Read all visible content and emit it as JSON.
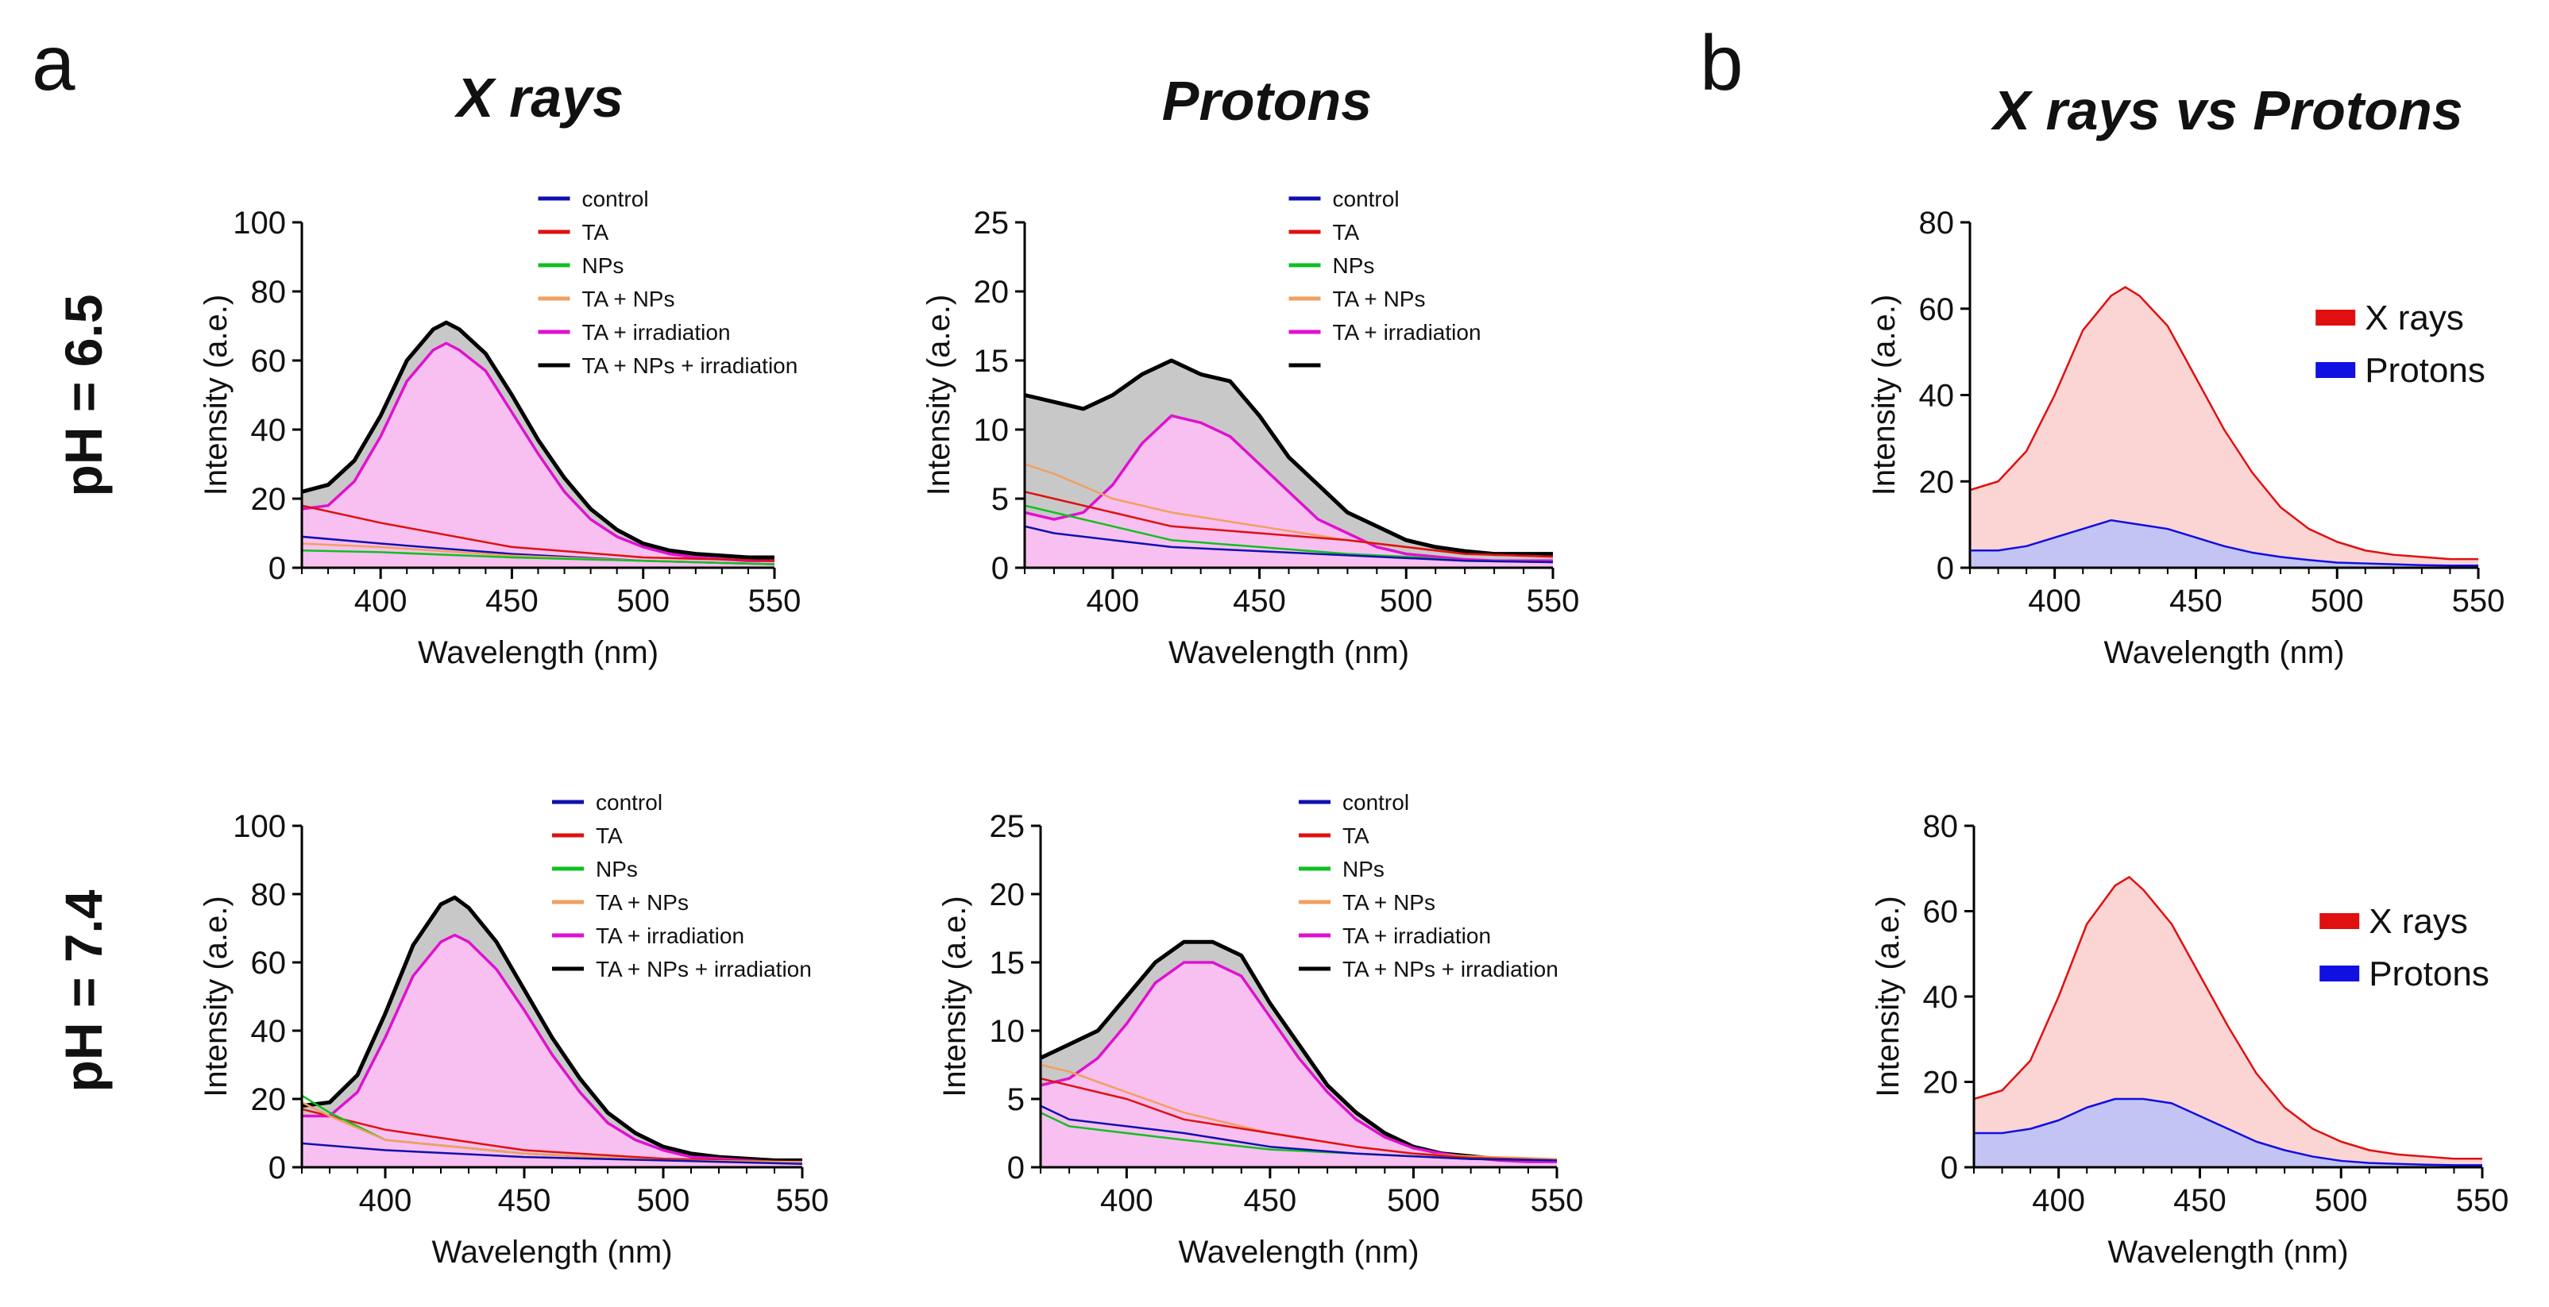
{
  "figure": {
    "panel_a": "a",
    "panel_b": "b",
    "titles": {
      "xrays": "X rays",
      "protons": "Protons",
      "vs": "X rays vs Protons"
    },
    "rows": [
      "pH = 6.5",
      "pH = 7.4"
    ]
  },
  "colors": {
    "control": "#1010b0",
    "TA": "#e01010",
    "NPs": "#10c020",
    "TA + NPs": "#f0a060",
    "TA + irradiation": "#e010d0",
    "TA + NPs + irradiation": "#000000",
    "fill_gray": "#c8c8c8",
    "fill_pink": "#f8c0f0",
    "X rays": "#e01010",
    "Protons": "#1010e0",
    "fill_red": "#fbd4d4",
    "fill_blue": "#c4c4f4"
  },
  "chart_data": [
    {
      "id": "xrays_ph65",
      "type": "line",
      "title": "X rays",
      "row": "pH = 6.5",
      "xlabel": "Wavelength (nm)",
      "ylabel": "Intensity  (a.e.)",
      "xlim": [
        370,
        550
      ],
      "ylim": [
        0,
        100
      ],
      "xticks": [
        "400",
        "450",
        "500",
        "550"
      ],
      "yticks": [
        "0",
        "20",
        "40",
        "60",
        "80",
        "100"
      ],
      "legend": [
        "control",
        "TA",
        "NPs",
        "TA + NPs",
        "TA + irradiation",
        "TA + NPs + irradiation"
      ],
      "series": [
        {
          "name": "TA + NPs + irradiation",
          "x": [
            370,
            380,
            390,
            400,
            410,
            420,
            425,
            430,
            440,
            450,
            460,
            470,
            480,
            490,
            500,
            510,
            520,
            530,
            540,
            550
          ],
          "y": [
            22,
            24,
            31,
            44,
            60,
            69,
            71,
            69,
            62,
            50,
            37,
            26,
            17,
            11,
            7,
            5,
            4,
            3.5,
            3,
            3
          ]
        },
        {
          "name": "TA + irradiation",
          "x": [
            370,
            380,
            390,
            400,
            410,
            420,
            425,
            430,
            440,
            450,
            460,
            470,
            480,
            490,
            500,
            510,
            520,
            530,
            540,
            550
          ],
          "y": [
            17,
            18,
            25,
            38,
            54,
            63,
            65,
            63,
            57,
            45,
            33,
            22,
            14,
            9,
            6,
            4,
            3,
            2.5,
            2,
            2
          ]
        },
        {
          "name": "TA",
          "x": [
            370,
            400,
            450,
            500,
            550
          ],
          "y": [
            18,
            13,
            6,
            3,
            2
          ]
        },
        {
          "name": "control",
          "x": [
            370,
            400,
            450,
            500,
            550
          ],
          "y": [
            9,
            7,
            4,
            2,
            1
          ]
        },
        {
          "name": "TA + NPs",
          "x": [
            370,
            400,
            450,
            500,
            550
          ],
          "y": [
            7,
            6,
            3.5,
            2,
            1
          ]
        },
        {
          "name": "NPs",
          "x": [
            370,
            400,
            450,
            500,
            550
          ],
          "y": [
            5,
            4.5,
            3,
            2,
            1
          ]
        }
      ]
    },
    {
      "id": "protons_ph65",
      "type": "line",
      "title": "Protons",
      "row": "pH = 6.5",
      "xlabel": "Wavelength (nm)",
      "ylabel": "Intensity  (a.e.)",
      "xlim": [
        370,
        550
      ],
      "ylim": [
        0,
        25
      ],
      "xticks": [
        "400",
        "450",
        "500",
        "550"
      ],
      "yticks": [
        "0",
        "5",
        "10",
        "15",
        "20",
        "25"
      ],
      "legend": [
        "control",
        "TA",
        "NPs",
        "TA + NPs",
        "TA + irradiation",
        ""
      ],
      "series": [
        {
          "name": "TA + NPs + irradiation",
          "x": [
            370,
            380,
            390,
            400,
            410,
            420,
            430,
            440,
            450,
            460,
            470,
            480,
            490,
            500,
            510,
            520,
            530,
            540,
            550
          ],
          "y": [
            12.5,
            12,
            11.5,
            12.5,
            14,
            15,
            14,
            13.5,
            11,
            8,
            6,
            4,
            3,
            2,
            1.5,
            1.2,
            1,
            1,
            1
          ]
        },
        {
          "name": "TA + irradiation",
          "x": [
            370,
            380,
            390,
            400,
            410,
            420,
            430,
            440,
            450,
            460,
            470,
            480,
            490,
            500,
            510,
            520,
            530,
            540,
            550
          ],
          "y": [
            4,
            3.5,
            4,
            6,
            9,
            11,
            10.5,
            9.5,
            7.5,
            5.5,
            3.5,
            2.5,
            1.5,
            1,
            0.8,
            0.6,
            0.5,
            0.5,
            0.5
          ]
        },
        {
          "name": "TA + NPs",
          "x": [
            370,
            380,
            400,
            420,
            450,
            480,
            500,
            520,
            550
          ],
          "y": [
            7.5,
            6.8,
            5,
            4,
            3,
            2,
            1.5,
            1,
            0.8
          ]
        },
        {
          "name": "TA",
          "x": [
            370,
            380,
            400,
            420,
            450,
            480,
            500,
            520,
            550
          ],
          "y": [
            5.5,
            5,
            4,
            3,
            2.5,
            2,
            1.5,
            1,
            0.8
          ]
        },
        {
          "name": "NPs",
          "x": [
            370,
            380,
            400,
            420,
            450,
            480,
            500,
            520,
            550
          ],
          "y": [
            4.5,
            4,
            3,
            2,
            1.5,
            1,
            0.8,
            0.5,
            0.4
          ]
        },
        {
          "name": "control",
          "x": [
            370,
            380,
            400,
            420,
            450,
            480,
            500,
            520,
            550
          ],
          "y": [
            3,
            2.5,
            2,
            1.5,
            1.2,
            0.9,
            0.7,
            0.5,
            0.4
          ]
        }
      ]
    },
    {
      "id": "vs_ph65",
      "type": "area",
      "title": "X rays vs Protons",
      "row": "pH = 6.5",
      "xlabel": "Wavelength (nm)",
      "ylabel": "Intensity  (a.e.)",
      "xlim": [
        370,
        550
      ],
      "ylim": [
        0,
        80
      ],
      "xticks": [
        "400",
        "450",
        "500",
        "550"
      ],
      "yticks": [
        "0",
        "20",
        "40",
        "60",
        "80"
      ],
      "legend": [
        "X rays",
        "Protons"
      ],
      "series": [
        {
          "name": "X rays",
          "x": [
            370,
            380,
            390,
            400,
            410,
            420,
            425,
            430,
            440,
            450,
            460,
            470,
            480,
            490,
            500,
            510,
            520,
            530,
            540,
            550
          ],
          "y": [
            18,
            20,
            27,
            40,
            55,
            63,
            65,
            63,
            56,
            44,
            32,
            22,
            14,
            9,
            6,
            4,
            3,
            2.5,
            2,
            2
          ]
        },
        {
          "name": "Protons",
          "x": [
            370,
            380,
            390,
            400,
            410,
            420,
            430,
            440,
            450,
            460,
            470,
            480,
            490,
            500,
            510,
            520,
            530,
            540,
            550
          ],
          "y": [
            4,
            4,
            5,
            7,
            9,
            11,
            10,
            9,
            7,
            5,
            3.5,
            2.5,
            1.8,
            1.2,
            1,
            0.8,
            0.6,
            0.5,
            0.5
          ]
        }
      ]
    },
    {
      "id": "xrays_ph74",
      "type": "line",
      "title": "X rays",
      "row": "pH = 7.4",
      "xlabel": "Wavelength (nm)",
      "ylabel": "Intensity  (a.e.)",
      "xlim": [
        370,
        550
      ],
      "ylim": [
        0,
        100
      ],
      "xticks": [
        "400",
        "450",
        "500",
        "550"
      ],
      "yticks": [
        "0",
        "20",
        "40",
        "60",
        "80",
        "100"
      ],
      "legend": [
        "control",
        "TA",
        "NPs",
        "TA + NPs",
        "TA + irradiation",
        "TA + NPs + irradiation"
      ],
      "series": [
        {
          "name": "TA + NPs + irradiation",
          "x": [
            370,
            380,
            390,
            400,
            410,
            420,
            425,
            430,
            440,
            450,
            460,
            470,
            480,
            490,
            500,
            510,
            520,
            530,
            540,
            550
          ],
          "y": [
            18,
            19,
            27,
            45,
            65,
            77,
            79,
            76,
            66,
            52,
            38,
            26,
            16,
            10,
            6,
            4,
            3,
            2.5,
            2,
            2
          ]
        },
        {
          "name": "TA + irradiation",
          "x": [
            370,
            380,
            390,
            400,
            410,
            420,
            425,
            430,
            440,
            450,
            460,
            470,
            480,
            490,
            500,
            510,
            520,
            530,
            540,
            550
          ],
          "y": [
            15,
            15,
            22,
            38,
            56,
            66,
            68,
            66,
            58,
            46,
            33,
            22,
            13,
            8,
            5,
            3,
            2.5,
            2,
            1.5,
            1.5
          ]
        },
        {
          "name": "TA",
          "x": [
            370,
            400,
            450,
            500,
            550
          ],
          "y": [
            17,
            11,
            5,
            2.5,
            1.5
          ]
        },
        {
          "name": "NPs",
          "x": [
            370,
            380,
            400,
            450,
            500,
            550
          ],
          "y": [
            21,
            16,
            8,
            4,
            2,
            1.5
          ]
        },
        {
          "name": "TA + NPs",
          "x": [
            370,
            380,
            400,
            450,
            500,
            550
          ],
          "y": [
            19,
            15,
            8,
            4,
            2,
            1.5
          ]
        },
        {
          "name": "control",
          "x": [
            370,
            400,
            450,
            500,
            550
          ],
          "y": [
            7,
            5,
            3,
            2,
            1
          ]
        }
      ]
    },
    {
      "id": "protons_ph74",
      "type": "line",
      "title": "Protons",
      "row": "pH = 7.4",
      "xlabel": "Wavelength (nm)",
      "ylabel": "Intensity  (a.e.)",
      "xlim": [
        370,
        550
      ],
      "ylim": [
        0,
        25
      ],
      "xticks": [
        "400",
        "450",
        "500",
        "550"
      ],
      "yticks": [
        "0",
        "5",
        "10",
        "15",
        "20",
        "25"
      ],
      "legend": [
        "control",
        "TA",
        "NPs",
        "TA + NPs",
        "TA + irradiation",
        "TA + NPs + irradiation"
      ],
      "series": [
        {
          "name": "TA + NPs + irradiation",
          "x": [
            370,
            380,
            390,
            400,
            410,
            420,
            430,
            440,
            450,
            460,
            470,
            480,
            490,
            500,
            510,
            520,
            530,
            540,
            550
          ],
          "y": [
            8,
            9,
            10,
            12.5,
            15,
            16.5,
            16.5,
            15.5,
            12,
            9,
            6,
            4,
            2.5,
            1.5,
            1,
            0.8,
            0.6,
            0.5,
            0.5
          ]
        },
        {
          "name": "TA + irradiation",
          "x": [
            370,
            380,
            390,
            400,
            410,
            420,
            430,
            440,
            450,
            460,
            470,
            480,
            490,
            500,
            510,
            520,
            530,
            540,
            550
          ],
          "y": [
            6,
            6.5,
            8,
            10.5,
            13.5,
            15,
            15,
            14,
            11,
            8,
            5.5,
            3.5,
            2.2,
            1.4,
            1,
            0.7,
            0.5,
            0.4,
            0.4
          ]
        },
        {
          "name": "TA + NPs",
          "x": [
            370,
            380,
            400,
            420,
            450,
            480,
            500,
            520,
            550
          ],
          "y": [
            7.5,
            7,
            5.5,
            4,
            2.5,
            1.5,
            1,
            0.8,
            0.6
          ]
        },
        {
          "name": "TA",
          "x": [
            370,
            380,
            400,
            420,
            450,
            480,
            500,
            520,
            550
          ],
          "y": [
            6.5,
            6,
            5,
            3.5,
            2.5,
            1.5,
            1,
            0.7,
            0.5
          ]
        },
        {
          "name": "NPs",
          "x": [
            370,
            380,
            400,
            420,
            450,
            480,
            500,
            520,
            550
          ],
          "y": [
            4,
            3,
            2.5,
            2,
            1.3,
            1,
            0.8,
            0.6,
            0.5
          ]
        },
        {
          "name": "control",
          "x": [
            370,
            380,
            400,
            420,
            450,
            480,
            500,
            520,
            550
          ],
          "y": [
            4.5,
            3.5,
            3,
            2.5,
            1.5,
            1,
            0.8,
            0.6,
            0.5
          ]
        }
      ]
    },
    {
      "id": "vs_ph74",
      "type": "area",
      "title": "X rays vs Protons",
      "row": "pH = 7.4",
      "xlabel": "Wavelength (nm)",
      "ylabel": "Intensity  (a.e.)",
      "xlim": [
        370,
        550
      ],
      "ylim": [
        0,
        80
      ],
      "xticks": [
        "400",
        "450",
        "500",
        "550"
      ],
      "yticks": [
        "0",
        "20",
        "40",
        "60",
        "80"
      ],
      "legend": [
        "X rays",
        "Protons"
      ],
      "series": [
        {
          "name": "X rays",
          "x": [
            370,
            380,
            390,
            400,
            410,
            420,
            425,
            430,
            440,
            450,
            460,
            470,
            480,
            490,
            500,
            510,
            520,
            530,
            540,
            550
          ],
          "y": [
            16,
            18,
            25,
            40,
            57,
            66,
            68,
            65,
            57,
            45,
            33,
            22,
            14,
            9,
            6,
            4,
            3,
            2.5,
            2,
            2
          ]
        },
        {
          "name": "Protons",
          "x": [
            370,
            380,
            390,
            400,
            410,
            420,
            430,
            440,
            450,
            460,
            470,
            480,
            490,
            500,
            510,
            520,
            530,
            540,
            550
          ],
          "y": [
            8,
            8,
            9,
            11,
            14,
            16,
            16,
            15,
            12,
            9,
            6,
            4,
            2.5,
            1.5,
            1,
            0.8,
            0.6,
            0.5,
            0.5
          ]
        }
      ]
    }
  ]
}
